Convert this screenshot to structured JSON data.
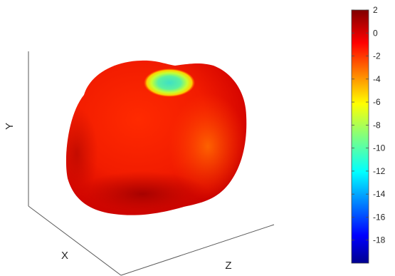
{
  "chart_data": {
    "type": "surface",
    "axes": {
      "xlabel": "X",
      "ylabel": "Y",
      "zlabel": "Z"
    },
    "grid": false,
    "colorbar": {
      "position": "right",
      "colormap": "jet",
      "range": [
        -20,
        2
      ],
      "ticks": [
        2,
        0,
        -2,
        -4,
        -6,
        -8,
        -10,
        -12,
        -14,
        -16,
        -18
      ]
    },
    "surface": {
      "shape": "deformed sphere (apple-like)",
      "value_range": [
        -11,
        2
      ],
      "typical_value": 0,
      "highlight": "dimple on top reaching about -11 (cyan)"
    }
  }
}
